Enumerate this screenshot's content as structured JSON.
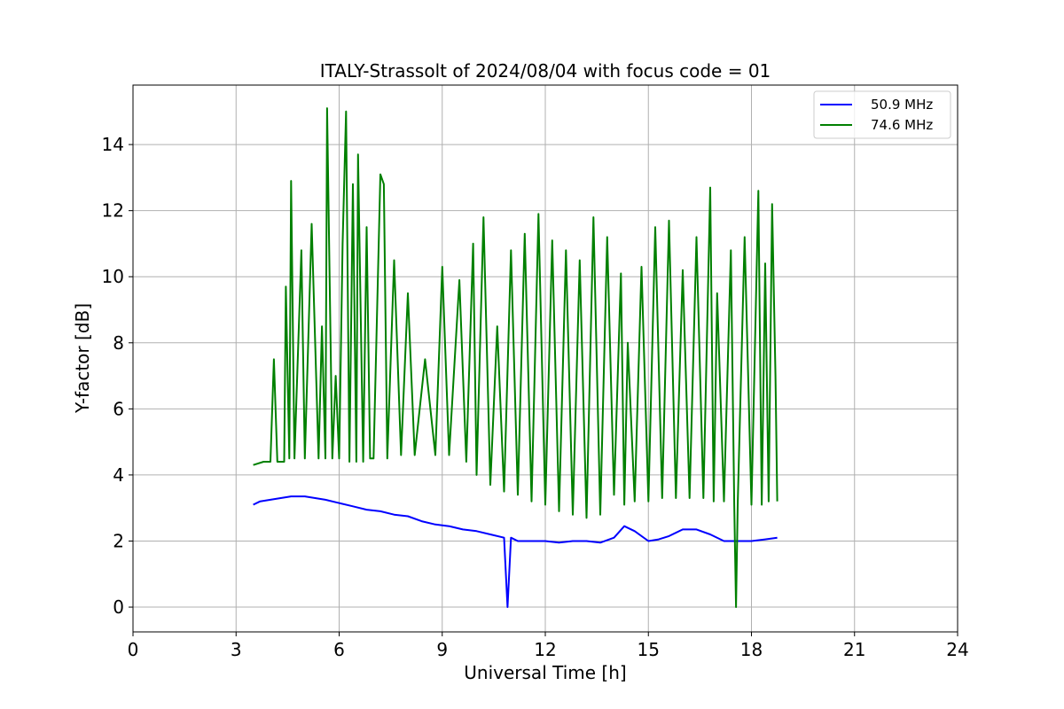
{
  "chart_data": {
    "type": "line",
    "title": "ITALY-Strassolt of 2024/08/04 with focus code = 01",
    "xlabel": "Universal Time [h]",
    "ylabel": "Y-factor [dB]",
    "xlim": [
      0,
      24
    ],
    "ylim": [
      -0.75,
      15.8
    ],
    "xticks": [
      0,
      3,
      6,
      9,
      12,
      15,
      18,
      21,
      24
    ],
    "yticks": [
      0,
      2,
      4,
      6,
      8,
      10,
      12,
      14
    ],
    "grid": true,
    "legend_position": "top-right",
    "series": [
      {
        "name": "50.9 MHz",
        "color": "#0000ff",
        "x": [
          3.5,
          3.7,
          4.0,
          4.3,
          4.6,
          5.0,
          5.3,
          5.6,
          6.0,
          6.4,
          6.8,
          7.2,
          7.6,
          8.0,
          8.4,
          8.8,
          9.2,
          9.6,
          10.0,
          10.4,
          10.8,
          10.9,
          11.0,
          11.2,
          11.6,
          12.0,
          12.4,
          12.8,
          13.2,
          13.6,
          14.0,
          14.3,
          14.6,
          15.0,
          15.3,
          15.6,
          16.0,
          16.4,
          16.8,
          17.2,
          17.6,
          18.0,
          18.4,
          18.75
        ],
        "y": [
          3.1,
          3.2,
          3.25,
          3.3,
          3.35,
          3.35,
          3.3,
          3.25,
          3.15,
          3.05,
          2.95,
          2.9,
          2.8,
          2.75,
          2.6,
          2.5,
          2.45,
          2.35,
          2.3,
          2.2,
          2.1,
          0.0,
          2.1,
          2.0,
          2.0,
          2.0,
          1.95,
          2.0,
          2.0,
          1.95,
          2.1,
          2.45,
          2.3,
          2.0,
          2.05,
          2.15,
          2.35,
          2.35,
          2.2,
          2.0,
          2.0,
          2.0,
          2.05,
          2.1
        ]
      },
      {
        "name": "74.6 MHz",
        "color": "#008000",
        "x": [
          3.5,
          3.8,
          4.0,
          4.1,
          4.2,
          4.4,
          4.45,
          4.55,
          4.6,
          4.7,
          4.9,
          5.0,
          5.2,
          5.4,
          5.5,
          5.6,
          5.65,
          5.8,
          5.9,
          6.0,
          6.1,
          6.2,
          6.3,
          6.4,
          6.5,
          6.55,
          6.7,
          6.8,
          6.9,
          7.0,
          7.2,
          7.3,
          7.4,
          7.6,
          7.8,
          8.0,
          8.2,
          8.5,
          8.8,
          9.0,
          9.2,
          9.5,
          9.7,
          9.9,
          10.0,
          10.2,
          10.4,
          10.6,
          10.8,
          11.0,
          11.2,
          11.4,
          11.6,
          11.8,
          12.0,
          12.2,
          12.4,
          12.6,
          12.8,
          13.0,
          13.2,
          13.4,
          13.6,
          13.8,
          14.0,
          14.2,
          14.3,
          14.4,
          14.6,
          14.8,
          15.0,
          15.2,
          15.4,
          15.6,
          15.8,
          16.0,
          16.2,
          16.4,
          16.6,
          16.8,
          16.9,
          17.0,
          17.2,
          17.4,
          17.5,
          17.55,
          17.6,
          17.8,
          18.0,
          18.2,
          18.3,
          18.4,
          18.5,
          18.6,
          18.7,
          18.75
        ],
        "y": [
          4.3,
          4.4,
          4.4,
          7.5,
          4.4,
          4.4,
          9.7,
          4.5,
          12.9,
          4.5,
          10.8,
          4.5,
          11.6,
          4.5,
          8.5,
          4.5,
          15.1,
          4.5,
          7.0,
          4.5,
          11.0,
          15.0,
          4.4,
          12.8,
          4.4,
          13.7,
          4.4,
          11.5,
          4.5,
          4.5,
          13.1,
          12.8,
          4.5,
          10.5,
          4.6,
          9.5,
          4.6,
          7.5,
          4.6,
          10.3,
          4.6,
          9.9,
          4.4,
          11.0,
          4.0,
          11.8,
          3.7,
          8.5,
          3.5,
          10.8,
          3.4,
          11.3,
          3.2,
          11.9,
          3.1,
          11.1,
          2.9,
          10.8,
          2.8,
          10.5,
          2.7,
          11.8,
          2.8,
          11.2,
          3.4,
          10.1,
          3.1,
          8.0,
          3.2,
          10.3,
          3.2,
          11.5,
          3.3,
          11.7,
          3.3,
          10.2,
          3.3,
          11.2,
          3.3,
          12.7,
          3.2,
          9.5,
          3.2,
          10.8,
          3.1,
          0.0,
          3.1,
          11.2,
          3.1,
          12.6,
          3.1,
          10.4,
          3.2,
          12.2,
          7.0,
          3.2
        ]
      }
    ]
  }
}
